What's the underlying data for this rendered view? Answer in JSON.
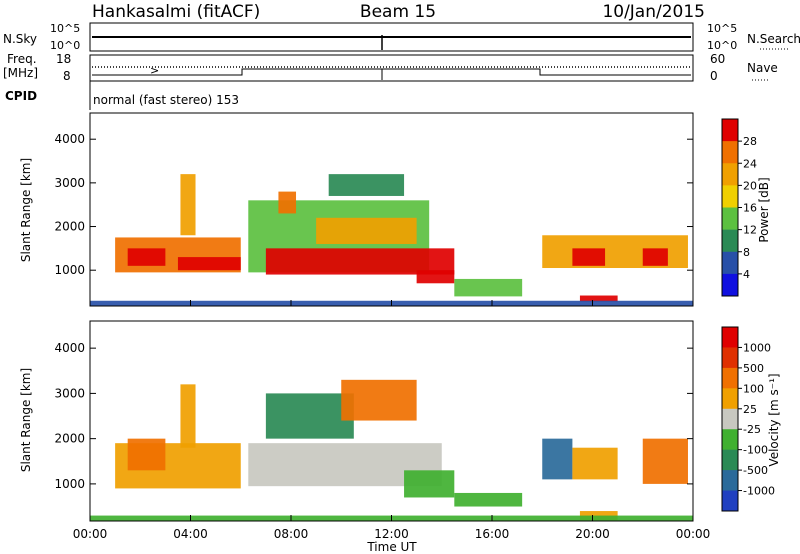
{
  "header": {
    "station": "Hankasalmi (fitACF)",
    "beam": "Beam 15",
    "date": "10/Jan/2015"
  },
  "status_panels": {
    "nsky_label": "N.Sky",
    "nsky_ticks": [
      "10^5",
      "10^0"
    ],
    "nsearch_label": "N.Search",
    "nsearch_ticks": [
      "10^5",
      "10^0"
    ],
    "freq_label_1": "Freq.",
    "freq_label_2": "[MHz]",
    "freq_ticks": [
      "18",
      "8"
    ],
    "nave_label": "Nave",
    "nave_ticks": [
      "60",
      "0"
    ],
    "cpid_label": "CPID",
    "cpid_text": "normal (fast stereo) 153"
  },
  "chart_data": [
    {
      "type": "heatmap",
      "name": "power",
      "ylabel": "Slant Range [km]",
      "xlabel": "",
      "xlim_hours": [
        0,
        24
      ],
      "ylim": [
        180,
        4600
      ],
      "yticks": [
        1000,
        2000,
        3000,
        4000
      ],
      "colorbar_label": "Power [dB]",
      "colorbar_ticks": [
        "28",
        "24",
        "20",
        "16",
        "12",
        "8",
        "4"
      ],
      "colors": [
        "#1010e0",
        "#2850a8",
        "#2a8a55",
        "#5cc040",
        "#f0d000",
        "#f0a000",
        "#f07000",
        "#e00000"
      ],
      "regions": [
        {
          "t0": 1.0,
          "t1": 6.0,
          "r0": 950,
          "r1": 1750,
          "level": 6
        },
        {
          "t0": 1.5,
          "t1": 3.0,
          "r0": 1100,
          "r1": 1500,
          "level": 7
        },
        {
          "t0": 3.5,
          "t1": 6.0,
          "r0": 1000,
          "r1": 1300,
          "level": 7
        },
        {
          "t0": 3.6,
          "t1": 4.2,
          "r0": 1800,
          "r1": 3200,
          "level": 5
        },
        {
          "t0": 6.3,
          "t1": 13.5,
          "r0": 950,
          "r1": 2600,
          "level": 3
        },
        {
          "t0": 7.0,
          "t1": 14.5,
          "r0": 900,
          "r1": 1500,
          "level": 7
        },
        {
          "t0": 9.0,
          "t1": 13.0,
          "r0": 1600,
          "r1": 2200,
          "level": 5
        },
        {
          "t0": 7.5,
          "t1": 8.2,
          "r0": 2300,
          "r1": 2800,
          "level": 6
        },
        {
          "t0": 9.5,
          "t1": 12.5,
          "r0": 2700,
          "r1": 3200,
          "level": 2
        },
        {
          "t0": 13.0,
          "t1": 14.5,
          "r0": 700,
          "r1": 1000,
          "level": 7
        },
        {
          "t0": 14.5,
          "t1": 17.2,
          "r0": 400,
          "r1": 800,
          "level": 3
        },
        {
          "t0": 18.0,
          "t1": 23.8,
          "r0": 1050,
          "r1": 1800,
          "level": 5
        },
        {
          "t0": 19.2,
          "t1": 20.5,
          "r0": 1100,
          "r1": 1500,
          "level": 7
        },
        {
          "t0": 22.0,
          "t1": 23.0,
          "r0": 1100,
          "r1": 1500,
          "level": 7
        },
        {
          "t0": 19.5,
          "t1": 21.0,
          "r0": 280,
          "r1": 420,
          "level": 7
        },
        {
          "t0": 0.0,
          "t1": 24.0,
          "r0": 180,
          "r1": 300,
          "level": 1
        }
      ]
    },
    {
      "type": "heatmap",
      "name": "velocity",
      "ylabel": "Slant Range [km]",
      "xlabel": "Time UT",
      "xlim_hours": [
        0,
        24
      ],
      "ylim": [
        180,
        4600
      ],
      "yticks": [
        1000,
        2000,
        3000,
        4000
      ],
      "xticks": [
        "00:00",
        "04:00",
        "08:00",
        "12:00",
        "16:00",
        "20:00",
        "00:00"
      ],
      "colorbar_label": "Velocity [m s⁻¹]",
      "colorbar_ticks": [
        "1000",
        "500",
        "100",
        "25",
        "-25",
        "-100",
        "-500",
        "-1000"
      ],
      "colors": [
        "#2040c0",
        "#2a6a9a",
        "#2a8a55",
        "#40b030",
        "#c8c8c0",
        "#f0a000",
        "#f07000",
        "#e03000",
        "#e00000"
      ],
      "regions": [
        {
          "t0": 1.0,
          "t1": 6.0,
          "r0": 900,
          "r1": 1900,
          "level": 5
        },
        {
          "t0": 1.5,
          "t1": 3.0,
          "r0": 1300,
          "r1": 2000,
          "level": 6
        },
        {
          "t0": 3.6,
          "t1": 4.2,
          "r0": 1800,
          "r1": 3200,
          "level": 5
        },
        {
          "t0": 6.3,
          "t1": 14.0,
          "r0": 950,
          "r1": 1900,
          "level": 4
        },
        {
          "t0": 7.0,
          "t1": 10.5,
          "r0": 2000,
          "r1": 3000,
          "level": 2
        },
        {
          "t0": 10.0,
          "t1": 13.0,
          "r0": 2400,
          "r1": 3300,
          "level": 6
        },
        {
          "t0": 12.5,
          "t1": 14.5,
          "r0": 700,
          "r1": 1300,
          "level": 3
        },
        {
          "t0": 14.5,
          "t1": 17.2,
          "r0": 500,
          "r1": 800,
          "level": 3
        },
        {
          "t0": 18.0,
          "t1": 19.2,
          "r0": 1100,
          "r1": 2000,
          "level": 1
        },
        {
          "t0": 19.2,
          "t1": 21.0,
          "r0": 1100,
          "r1": 1800,
          "level": 5
        },
        {
          "t0": 22.0,
          "t1": 23.8,
          "r0": 1000,
          "r1": 2000,
          "level": 6
        },
        {
          "t0": 19.5,
          "t1": 21.0,
          "r0": 200,
          "r1": 400,
          "level": 5
        },
        {
          "t0": 0.0,
          "t1": 24.0,
          "r0": 180,
          "r1": 300,
          "level": 3
        }
      ]
    }
  ]
}
